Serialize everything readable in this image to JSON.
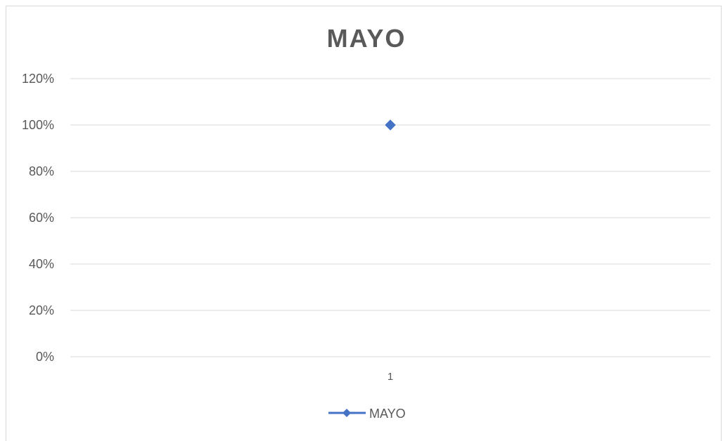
{
  "chart_data": {
    "type": "line",
    "title": "MAYO",
    "xlabel": "",
    "ylabel": "",
    "categories": [
      "1"
    ],
    "series": [
      {
        "name": "MAYO",
        "values": [
          1.0
        ],
        "color": "#4472c4",
        "marker": "diamond"
      }
    ],
    "ylim": [
      0,
      1.2
    ],
    "yticks": [
      0,
      0.2,
      0.4,
      0.6,
      0.8,
      1.0,
      1.2
    ],
    "ytick_labels": [
      "0%",
      "20%",
      "40%",
      "60%",
      "80%",
      "100%",
      "120%"
    ],
    "grid": true,
    "legend_position": "bottom",
    "gridline_color": "#d9d9d9",
    "text_color": "#595959"
  }
}
